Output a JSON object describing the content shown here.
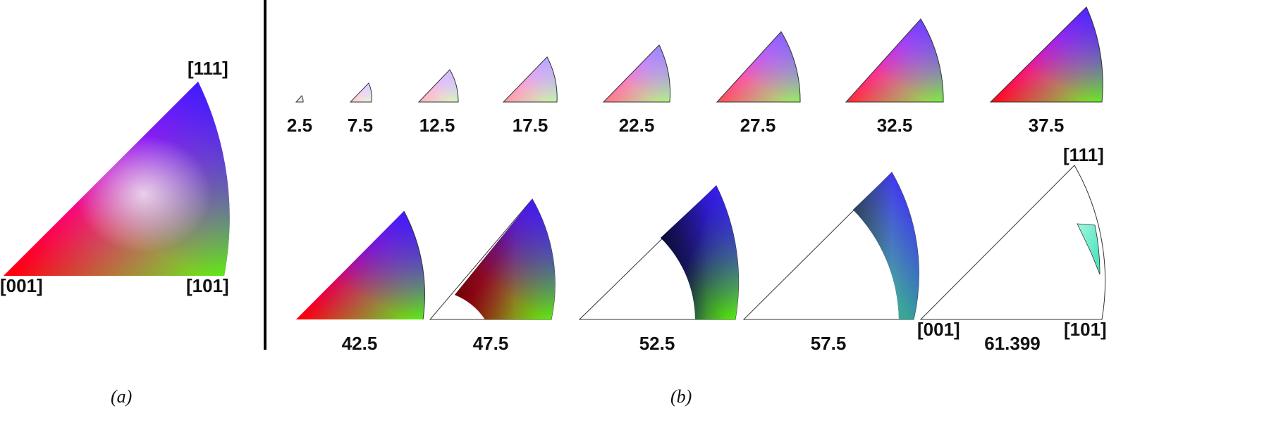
{
  "panel_a": {
    "caption": "(a)",
    "corners": {
      "c001": "[001]",
      "c101": "[101]",
      "c111": "[111]"
    }
  },
  "panel_b": {
    "caption": "(b)",
    "corners": {
      "c001": "[001]",
      "c101": "[101]",
      "c111": "[111]"
    },
    "values": [
      "2.5",
      "7.5",
      "12.5",
      "17.5",
      "22.5",
      "27.5",
      "32.5",
      "37.5",
      "42.5",
      "47.5",
      "52.5",
      "57.5",
      "61.399"
    ]
  }
}
